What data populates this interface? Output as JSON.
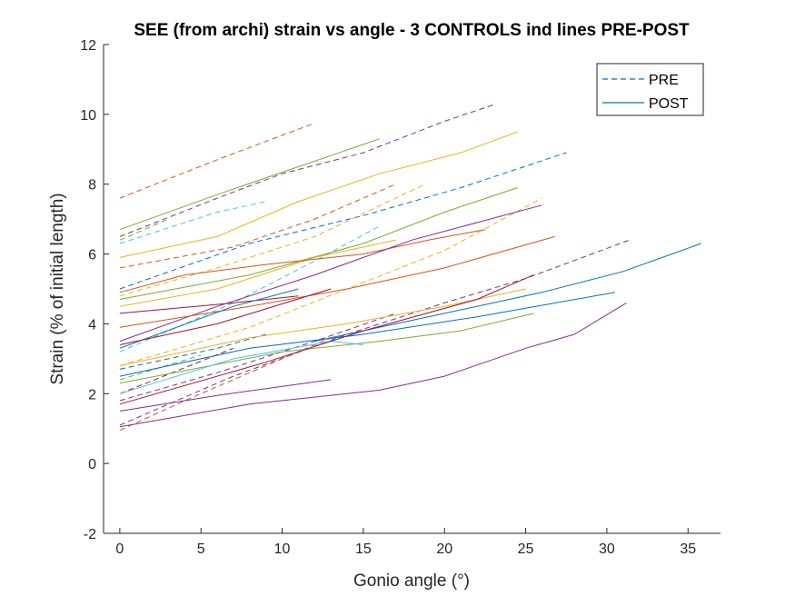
{
  "chart_data": {
    "type": "line",
    "title": "SEE (from archi) strain vs angle - 3 CONTROLS ind lines PRE-POST",
    "xlabel": "Gonio angle (°)",
    "ylabel": "Strain (% of initial length)",
    "xlim": [
      -1,
      37
    ],
    "ylim": [
      -2,
      12
    ],
    "xticks": [
      0,
      5,
      10,
      15,
      20,
      25,
      30,
      35
    ],
    "yticks": [
      -2,
      0,
      2,
      4,
      6,
      8,
      10,
      12
    ],
    "grid": false,
    "legend": {
      "placement": "top-right",
      "entries": [
        {
          "label": "PRE",
          "style": "dashed",
          "color": "#0072BD"
        },
        {
          "label": "POST",
          "style": "solid",
          "color": "#0072BD"
        }
      ]
    },
    "series": [
      {
        "style": "dashed",
        "color": "#D95319",
        "points": [
          [
            0,
            7.6
          ],
          [
            6,
            8.7
          ],
          [
            12,
            9.75
          ]
        ]
      },
      {
        "style": "dashed",
        "color": "#7E2F8E",
        "points": [
          [
            0,
            6.5
          ],
          [
            6,
            7.6
          ],
          [
            10,
            8.3
          ],
          [
            15,
            8.9
          ],
          [
            20,
            9.8
          ],
          [
            23.2,
            10.3
          ]
        ]
      },
      {
        "style": "dashed",
        "color": "#4DBEEE",
        "points": [
          [
            0,
            6.3
          ],
          [
            6,
            7.2
          ],
          [
            9,
            7.5
          ]
        ]
      },
      {
        "style": "dashed",
        "color": "#77AC30",
        "points": [
          [
            0,
            6.4
          ],
          [
            3,
            7.0
          ]
        ]
      },
      {
        "style": "dashed",
        "color": "#0072BD",
        "points": [
          [
            0,
            5.0
          ],
          [
            8,
            6.3
          ],
          [
            15,
            7.1
          ],
          [
            21,
            7.9
          ],
          [
            27.5,
            8.9
          ]
        ]
      },
      {
        "style": "dashed",
        "color": "#EDB120",
        "points": [
          [
            0,
            4.8
          ],
          [
            6,
            5.6
          ],
          [
            12,
            6.5
          ],
          [
            18.8,
            8.0
          ]
        ]
      },
      {
        "style": "dashed",
        "color": "#D95319",
        "points": [
          [
            0,
            5.6
          ],
          [
            7,
            6.2
          ],
          [
            12,
            7.0
          ],
          [
            17,
            8.0
          ]
        ]
      },
      {
        "style": "dashed",
        "color": "#EDB120",
        "points": [
          [
            0,
            2.8
          ],
          [
            8,
            3.9
          ],
          [
            14,
            5.0
          ],
          [
            20,
            6.1
          ],
          [
            26,
            7.6
          ]
        ]
      },
      {
        "style": "dashed",
        "color": "#4DBEEE",
        "points": [
          [
            0,
            3.2
          ],
          [
            7,
            4.6
          ],
          [
            12,
            5.8
          ],
          [
            16,
            6.8
          ]
        ]
      },
      {
        "style": "dashed",
        "color": "#7E2F8E",
        "points": [
          [
            0,
            1.1
          ],
          [
            7,
            2.5
          ],
          [
            14,
            3.7
          ],
          [
            20,
            4.6
          ],
          [
            25,
            5.3
          ],
          [
            31.4,
            6.4
          ]
        ]
      },
      {
        "style": "dashed",
        "color": "#0072BD",
        "points": [
          [
            0,
            2.7
          ],
          [
            6,
            3.3
          ],
          [
            9,
            3.7
          ]
        ]
      },
      {
        "style": "dashed",
        "color": "#77AC30",
        "points": [
          [
            0,
            2.4
          ],
          [
            5,
            3.1
          ]
        ]
      },
      {
        "style": "dashed",
        "color": "#D95319",
        "points": [
          [
            0,
            0.95
          ],
          [
            4,
            1.8
          ],
          [
            8,
            2.6
          ],
          [
            13,
            3.6
          ]
        ]
      },
      {
        "style": "dashed",
        "color": "#A2142F",
        "points": [
          [
            0,
            2.0
          ],
          [
            7,
            3.3
          ]
        ]
      },
      {
        "style": "dashed",
        "color": "#7E2F8E",
        "points": [
          [
            0,
            1.8
          ],
          [
            6,
            2.6
          ],
          [
            12,
            3.5
          ],
          [
            17,
            4.3
          ]
        ]
      },
      {
        "style": "solid",
        "color": "#77AC30",
        "points": [
          [
            0,
            6.7
          ],
          [
            6,
            7.7
          ],
          [
            11,
            8.5
          ],
          [
            16,
            9.3
          ]
        ]
      },
      {
        "style": "solid",
        "color": "#EDB120",
        "points": [
          [
            0,
            5.9
          ],
          [
            6,
            6.5
          ],
          [
            11,
            7.5
          ],
          [
            16,
            8.3
          ],
          [
            21,
            8.9
          ],
          [
            24.5,
            9.5
          ]
        ]
      },
      {
        "style": "solid",
        "color": "#77AC30",
        "points": [
          [
            0,
            4.7
          ],
          [
            8,
            5.4
          ],
          [
            15,
            6.3
          ],
          [
            20,
            7.2
          ],
          [
            24.5,
            7.9
          ]
        ]
      },
      {
        "style": "solid",
        "color": "#EDB120",
        "points": [
          [
            0,
            4.5
          ],
          [
            6,
            5.0
          ],
          [
            12,
            5.9
          ],
          [
            17,
            6.4
          ]
        ]
      },
      {
        "style": "solid",
        "color": "#D95319",
        "points": [
          [
            0,
            4.9
          ],
          [
            4,
            5.4
          ],
          [
            9,
            5.7
          ],
          [
            15,
            6.0
          ],
          [
            19,
            6.4
          ],
          [
            22.5,
            6.7
          ]
        ]
      },
      {
        "style": "solid",
        "color": "#A2142F",
        "points": [
          [
            0,
            4.3
          ],
          [
            7,
            4.6
          ],
          [
            11,
            4.8
          ]
        ]
      },
      {
        "style": "solid",
        "color": "#7E2F8E",
        "points": [
          [
            0,
            3.5
          ],
          [
            6,
            4.5
          ],
          [
            12,
            5.4
          ],
          [
            18,
            6.4
          ],
          [
            26,
            7.4
          ]
        ]
      },
      {
        "style": "solid",
        "color": "#D95319",
        "points": [
          [
            0,
            3.9
          ],
          [
            8,
            4.5
          ],
          [
            14,
            5.0
          ],
          [
            20,
            5.6
          ],
          [
            26.8,
            6.5
          ]
        ]
      },
      {
        "style": "solid",
        "color": "#0072BD",
        "points": [
          [
            0,
            3.3
          ],
          [
            7,
            4.5
          ],
          [
            11,
            5.0
          ]
        ]
      },
      {
        "style": "solid",
        "color": "#A2142F",
        "points": [
          [
            0,
            3.4
          ],
          [
            6,
            4.0
          ],
          [
            13,
            5.0
          ]
        ]
      },
      {
        "style": "solid",
        "color": "#EDB120",
        "points": [
          [
            0,
            2.8
          ],
          [
            8,
            3.6
          ],
          [
            14,
            4.0
          ],
          [
            20,
            4.5
          ],
          [
            25,
            5.0
          ]
        ]
      },
      {
        "style": "solid",
        "color": "#0072BD",
        "points": [
          [
            0,
            2.5
          ],
          [
            8,
            3.3
          ],
          [
            15,
            3.7
          ],
          [
            22,
            4.2
          ],
          [
            30.5,
            4.9
          ]
        ]
      },
      {
        "style": "solid",
        "color": "#0072BD",
        "points": [
          [
            12,
            3.5
          ],
          [
            20,
            4.3
          ],
          [
            26,
            4.9
          ],
          [
            31,
            5.5
          ],
          [
            34,
            6.0
          ],
          [
            35.8,
            6.3
          ]
        ]
      },
      {
        "style": "solid",
        "color": "#77AC30",
        "points": [
          [
            0,
            2.3
          ],
          [
            10,
            3.2
          ],
          [
            16,
            3.5
          ],
          [
            21,
            3.8
          ],
          [
            25.5,
            4.3
          ]
        ]
      },
      {
        "style": "solid",
        "color": "#4DBEEE",
        "points": [
          [
            0,
            2.0
          ],
          [
            7,
            3.0
          ],
          [
            13,
            3.5
          ],
          [
            15,
            3.4
          ]
        ]
      },
      {
        "style": "solid",
        "color": "#A2142F",
        "points": [
          [
            0,
            1.7
          ],
          [
            9,
            2.9
          ],
          [
            15,
            3.8
          ],
          [
            22,
            4.7
          ],
          [
            25.5,
            5.4
          ]
        ]
      },
      {
        "style": "solid",
        "color": "#7E2F8E",
        "points": [
          [
            0,
            1.05
          ],
          [
            8,
            1.7
          ],
          [
            16,
            2.1
          ],
          [
            20,
            2.5
          ],
          [
            25,
            3.3
          ],
          [
            28,
            3.7
          ],
          [
            31.2,
            4.6
          ]
        ]
      },
      {
        "style": "solid",
        "color": "#7E2F8E",
        "points": [
          [
            0,
            1.5
          ],
          [
            6,
            1.95
          ],
          [
            13,
            2.4
          ]
        ]
      }
    ]
  }
}
